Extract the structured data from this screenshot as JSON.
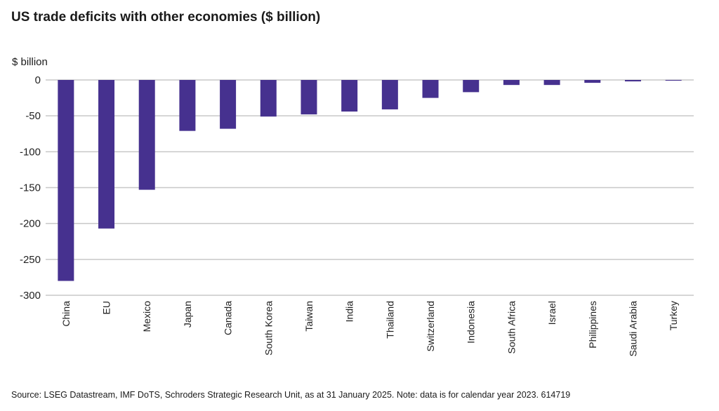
{
  "chart_data": {
    "type": "bar",
    "title": "US trade deficits with other economies ($ billion)",
    "ylabel": "$ billion",
    "xlabel": "",
    "ylim": [
      -300,
      0
    ],
    "yticks": [
      0,
      -50,
      -100,
      -150,
      -200,
      -250,
      -300
    ],
    "grid": true,
    "bar_color": "#46318F",
    "categories": [
      "China",
      "EU",
      "Mexico",
      "Japan",
      "Canada",
      "South Korea",
      "Taiwan",
      "India",
      "Thailand",
      "Switzerland",
      "Indonesia",
      "South Africa",
      "Israel",
      "Philippines",
      "Saudi Arabia",
      "Turkey"
    ],
    "values": [
      -280,
      -207,
      -153,
      -71,
      -68,
      -51,
      -48,
      -44,
      -41,
      -25,
      -17,
      -7,
      -7,
      -4,
      -2,
      -1
    ]
  },
  "source": "Source: LSEG Datastream, IMF DoTS, Schroders Strategic Research Unit, as at 31 January 2025. Note: data is for calendar year 2023. 614719"
}
